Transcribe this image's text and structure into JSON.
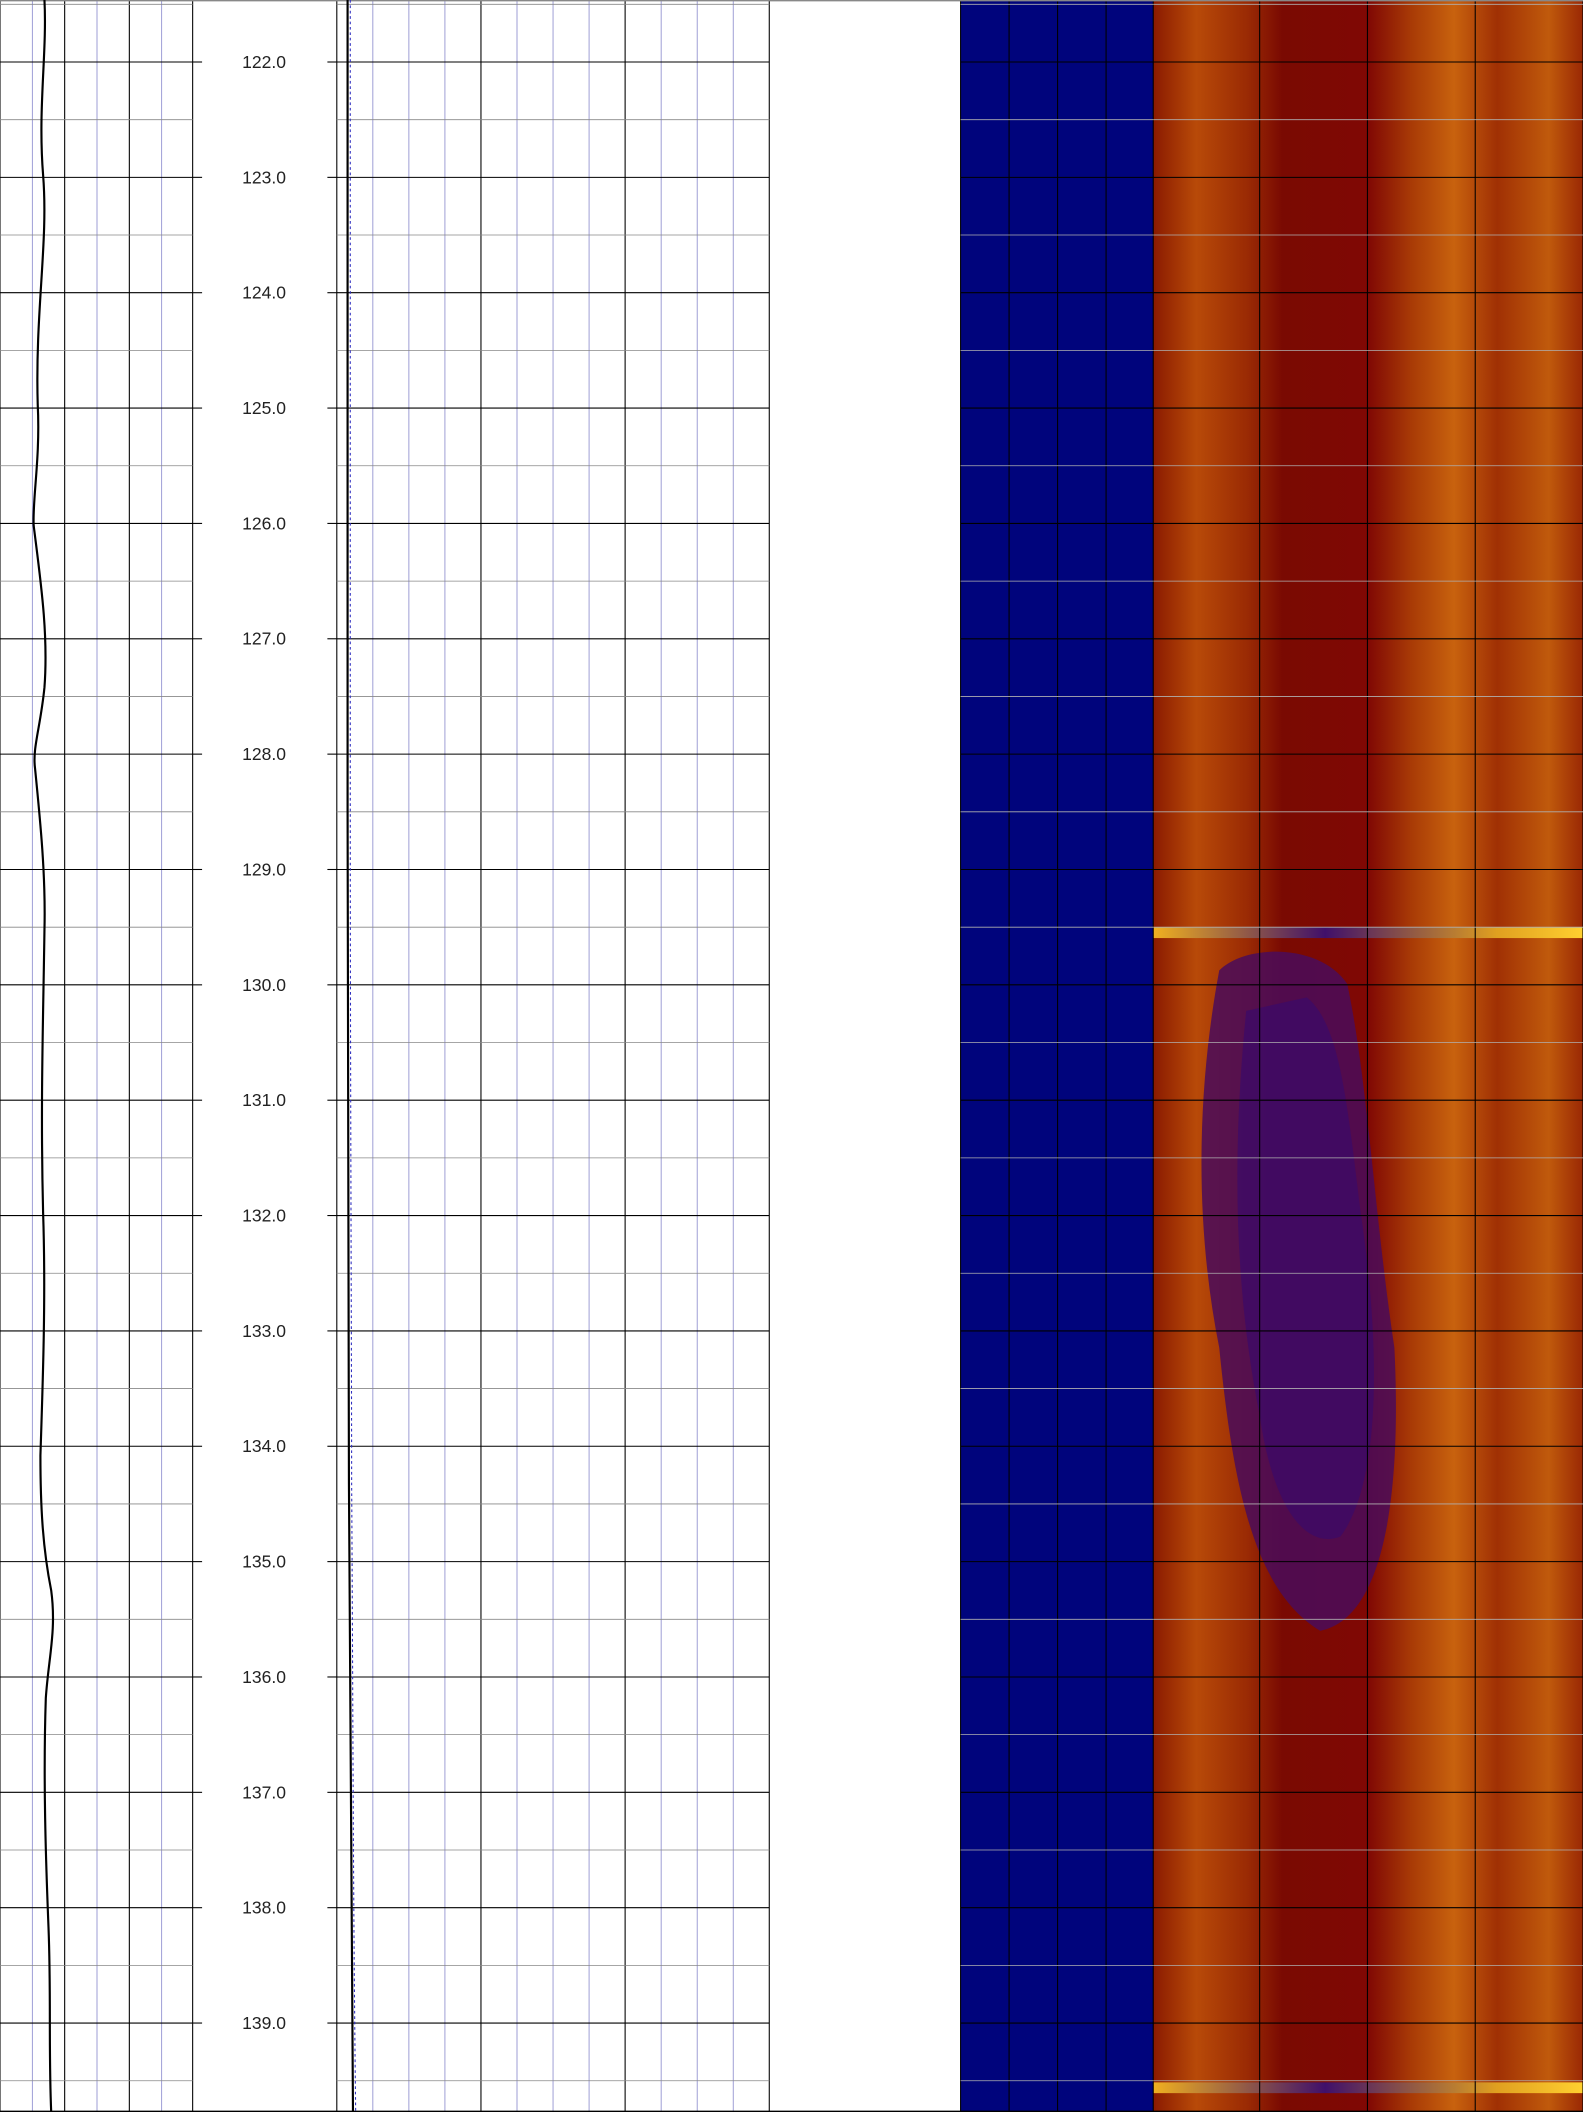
{
  "depth_track": {
    "labels": [
      "122.0",
      "123.0",
      "124.0",
      "125.0",
      "126.0",
      "127.0",
      "128.0",
      "129.0",
      "130.0",
      "131.0",
      "132.0",
      "133.0",
      "134.0",
      "135.0",
      "136.0",
      "137.0",
      "138.0",
      "139.0"
    ]
  }
}
